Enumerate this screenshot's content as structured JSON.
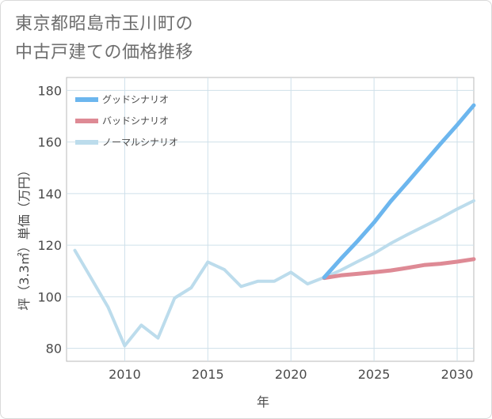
{
  "title_lines": [
    "東京都昭島市玉川町の",
    "中古戸建ての価格推移"
  ],
  "chart_data": {
    "type": "line",
    "xlabel": "年",
    "ylabel": "坪（3.3㎡）単価（万円）",
    "xlim": [
      2006.5,
      2031
    ],
    "ylim": [
      75,
      185
    ],
    "xticks": [
      2010,
      2015,
      2020,
      2025,
      2030
    ],
    "yticks": [
      80,
      100,
      120,
      140,
      160,
      180
    ],
    "grid": true,
    "legend_position": "top-left",
    "series": [
      {
        "name": "グッドシナリオ",
        "color": "#6cb6ee",
        "x": [
          2022,
          2023,
          2024,
          2025,
          2026,
          2027,
          2028,
          2029,
          2030,
          2031
        ],
        "values": [
          107.5,
          114.7,
          121.5,
          128.8,
          137.0,
          144.3,
          151.8,
          159.3,
          166.6,
          174.2
        ]
      },
      {
        "name": "バッドシナリオ",
        "color": "#de8a95",
        "x": [
          2022,
          2023,
          2024,
          2025,
          2026,
          2027,
          2028,
          2029,
          2030,
          2031
        ],
        "values": [
          107.3,
          108.3,
          108.9,
          109.5,
          110.2,
          111.2,
          112.3,
          112.8,
          113.6,
          114.6
        ]
      },
      {
        "name": "ノーマルシナリオ",
        "color": "#bcdcec",
        "x": [
          2007,
          2008,
          2009,
          2010,
          2011,
          2012,
          2013,
          2014,
          2015,
          2016,
          2017,
          2018,
          2019,
          2020,
          2021,
          2022,
          2023,
          2024,
          2025,
          2026,
          2027,
          2028,
          2029,
          2030,
          2031
        ],
        "values": [
          118,
          107,
          96,
          81,
          89,
          84,
          99.5,
          103.5,
          113.5,
          110.5,
          104,
          106,
          106,
          109.5,
          105,
          107.5,
          110.3,
          113.6,
          116.8,
          120.7,
          124.1,
          127.3,
          130.5,
          134.0,
          137.2
        ]
      }
    ]
  }
}
